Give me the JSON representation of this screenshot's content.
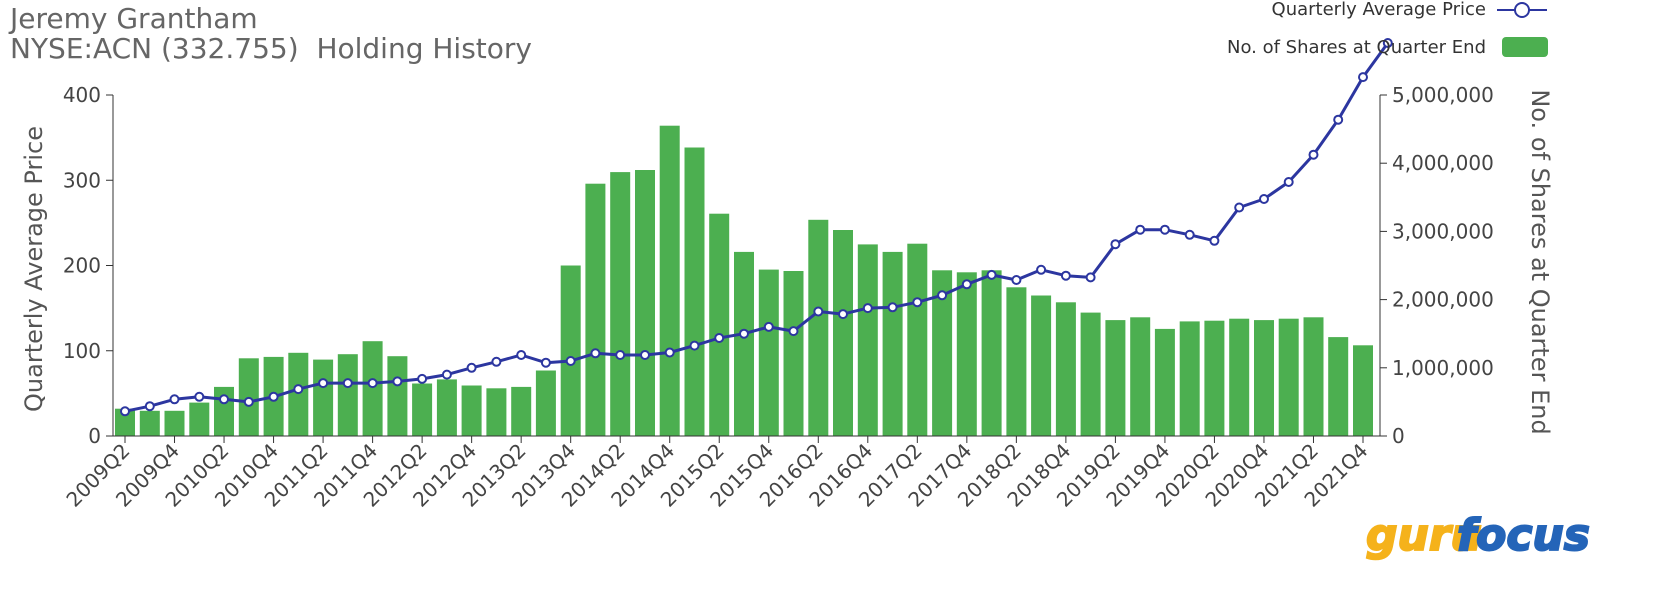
{
  "header": {
    "line1": "Jeremy Grantham",
    "line2": "NYSE:ACN (332.755)  Holding History"
  },
  "logo": {
    "part1": "guru",
    "part2": "focus"
  },
  "colors": {
    "bar": "#4caf50",
    "line": "#2c36a0",
    "point_fill": "#ffffff",
    "logo_gold": "#f5b21b",
    "logo_blue": "#2464b8"
  },
  "chart_data": {
    "type": "bar+line",
    "x_tick_labels": [
      "2009Q2",
      "2009Q4",
      "2010Q2",
      "2010Q4",
      "2011Q2",
      "2011Q4",
      "2012Q2",
      "2012Q4",
      "2013Q2",
      "2013Q4",
      "2014Q2",
      "2014Q4",
      "2015Q2",
      "2015Q4",
      "2016Q2",
      "2016Q4",
      "2017Q2",
      "2017Q4",
      "2018Q2",
      "2018Q4",
      "2019Q2",
      "2019Q4",
      "2020Q2",
      "2020Q4",
      "2021Q2",
      "2021Q4"
    ],
    "categories": [
      "2009Q2",
      "2009Q3",
      "2009Q4",
      "2010Q1",
      "2010Q2",
      "2010Q3",
      "2010Q4",
      "2011Q1",
      "2011Q2",
      "2011Q3",
      "2011Q4",
      "2012Q1",
      "2012Q2",
      "2012Q3",
      "2012Q4",
      "2013Q1",
      "2013Q2",
      "2013Q3",
      "2013Q4",
      "2014Q1",
      "2014Q2",
      "2014Q3",
      "2014Q4",
      "2015Q1",
      "2015Q2",
      "2015Q3",
      "2015Q4",
      "2016Q1",
      "2016Q2",
      "2016Q3",
      "2016Q4",
      "2017Q1",
      "2017Q2",
      "2017Q3",
      "2017Q4",
      "2018Q1",
      "2018Q2",
      "2018Q3",
      "2018Q4",
      "2019Q1",
      "2019Q2",
      "2019Q3",
      "2019Q4",
      "2020Q1",
      "2020Q2",
      "2020Q3",
      "2020Q4",
      "2021Q1",
      "2021Q2",
      "2021Q3",
      "2021Q4",
      "2022Q1"
    ],
    "series": [
      {
        "name": "No. of Shares at Quarter End",
        "axis": "right",
        "kind": "bar",
        "values": [
          400000,
          370000,
          370000,
          490000,
          720000,
          1140000,
          1160000,
          1220000,
          1120000,
          1200000,
          1390000,
          1170000,
          770000,
          830000,
          740000,
          700000,
          720000,
          960000,
          2500000,
          3700000,
          3870000,
          3900000,
          4550000,
          4230000,
          3260000,
          2700000,
          2440000,
          2420000,
          3170000,
          3020000,
          2810000,
          2700000,
          2820000,
          2430000,
          2400000,
          2430000,
          2180000,
          2060000,
          1960000,
          1810000,
          1700000,
          1740000,
          1570000,
          1680000,
          1690000,
          1720000,
          1700000,
          1720000,
          1740000,
          1450000,
          1330000,
          0
        ]
      },
      {
        "name": "Quarterly Average Price",
        "axis": "left",
        "kind": "line",
        "values": [
          29,
          35,
          43,
          46,
          43,
          40,
          46,
          55,
          62,
          62,
          62,
          64,
          67,
          72,
          80,
          87,
          95,
          86,
          88,
          97,
          95,
          95,
          98,
          106,
          115,
          120,
          128,
          123,
          146,
          143,
          150,
          151,
          157,
          165,
          178,
          189,
          183,
          195,
          188,
          186,
          225,
          242,
          242,
          236,
          229,
          268,
          278,
          298,
          330,
          371,
          421,
          461
        ]
      }
    ],
    "y_left": {
      "label": "Quarterly Average Price",
      "min": 0,
      "max": 400,
      "ticks": [
        "0",
        "100",
        "200",
        "300",
        "400"
      ]
    },
    "y_right": {
      "label": "No. of Shares at Quarter End",
      "min": 0,
      "max": 5000000,
      "ticks": [
        "0",
        "1,000,000",
        "2,000,000",
        "3,000,000",
        "4,000,000",
        "5,000,000"
      ]
    },
    "legend": {
      "position": "top-right",
      "items": [
        "Quarterly Average Price",
        "No. of Shares at Quarter End"
      ]
    },
    "grid": false
  }
}
